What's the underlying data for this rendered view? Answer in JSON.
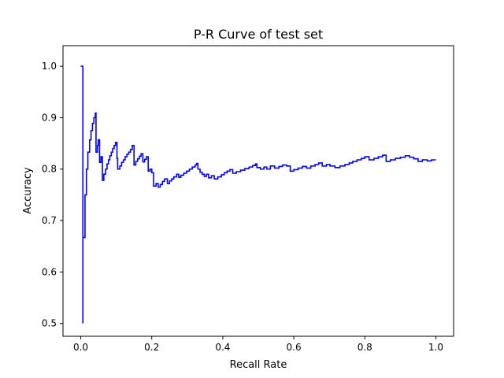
{
  "chart_data": {
    "type": "line",
    "title": "P-R Curve of test set",
    "xlabel": "Recall Rate",
    "ylabel": "Accuracy",
    "xlim": [
      -0.05,
      1.05
    ],
    "ylim": [
      0.475,
      1.04
    ],
    "xticks": [
      0.0,
      0.2,
      0.4,
      0.6,
      0.8,
      1.0
    ],
    "xtick_labels": [
      "0.0",
      "0.2",
      "0.4",
      "0.6",
      "0.8",
      "1.0"
    ],
    "yticks": [
      0.5,
      0.6,
      0.7,
      0.8,
      0.9,
      1.0
    ],
    "ytick_labels": [
      "0.5",
      "0.6",
      "0.7",
      "0.8",
      "0.9",
      "1.0"
    ],
    "grid": false,
    "series": [
      {
        "color": "#0000ff",
        "step": true,
        "points": [
          [
            0.0,
            1.0
          ],
          [
            0.006,
            0.5
          ],
          [
            0.006,
            0.667
          ],
          [
            0.012,
            0.75
          ],
          [
            0.016,
            0.8
          ],
          [
            0.02,
            0.833
          ],
          [
            0.025,
            0.857
          ],
          [
            0.029,
            0.875
          ],
          [
            0.033,
            0.889
          ],
          [
            0.037,
            0.9
          ],
          [
            0.041,
            0.909
          ],
          [
            0.043,
            0.833
          ],
          [
            0.047,
            0.846
          ],
          [
            0.049,
            0.857
          ],
          [
            0.053,
            0.813
          ],
          [
            0.057,
            0.824
          ],
          [
            0.061,
            0.778
          ],
          [
            0.065,
            0.79
          ],
          [
            0.07,
            0.8
          ],
          [
            0.074,
            0.81
          ],
          [
            0.078,
            0.818
          ],
          [
            0.082,
            0.826
          ],
          [
            0.086,
            0.833
          ],
          [
            0.09,
            0.84
          ],
          [
            0.094,
            0.846
          ],
          [
            0.098,
            0.852
          ],
          [
            0.102,
            0.821
          ],
          [
            0.104,
            0.8
          ],
          [
            0.11,
            0.806
          ],
          [
            0.115,
            0.813
          ],
          [
            0.12,
            0.818
          ],
          [
            0.125,
            0.824
          ],
          [
            0.13,
            0.829
          ],
          [
            0.135,
            0.833
          ],
          [
            0.14,
            0.838
          ],
          [
            0.145,
            0.846
          ],
          [
            0.15,
            0.808
          ],
          [
            0.155,
            0.815
          ],
          [
            0.16,
            0.82
          ],
          [
            0.165,
            0.825
          ],
          [
            0.17,
            0.83
          ],
          [
            0.175,
            0.814
          ],
          [
            0.18,
            0.819
          ],
          [
            0.185,
            0.824
          ],
          [
            0.19,
            0.796
          ],
          [
            0.195,
            0.8
          ],
          [
            0.2,
            0.793
          ],
          [
            0.205,
            0.767
          ],
          [
            0.212,
            0.772
          ],
          [
            0.218,
            0.765
          ],
          [
            0.224,
            0.77
          ],
          [
            0.23,
            0.776
          ],
          [
            0.236,
            0.781
          ],
          [
            0.244,
            0.772
          ],
          [
            0.25,
            0.777
          ],
          [
            0.256,
            0.781
          ],
          [
            0.262,
            0.785
          ],
          [
            0.27,
            0.79
          ],
          [
            0.276,
            0.784
          ],
          [
            0.282,
            0.788
          ],
          [
            0.29,
            0.792
          ],
          [
            0.298,
            0.796
          ],
          [
            0.306,
            0.8
          ],
          [
            0.314,
            0.804
          ],
          [
            0.322,
            0.808
          ],
          [
            0.326,
            0.811
          ],
          [
            0.33,
            0.8
          ],
          [
            0.336,
            0.794
          ],
          [
            0.342,
            0.79
          ],
          [
            0.348,
            0.786
          ],
          [
            0.354,
            0.79
          ],
          [
            0.36,
            0.783
          ],
          [
            0.368,
            0.787
          ],
          [
            0.376,
            0.781
          ],
          [
            0.386,
            0.785
          ],
          [
            0.396,
            0.789
          ],
          [
            0.404,
            0.793
          ],
          [
            0.412,
            0.796
          ],
          [
            0.42,
            0.799
          ],
          [
            0.428,
            0.792
          ],
          [
            0.438,
            0.795
          ],
          [
            0.45,
            0.798
          ],
          [
            0.462,
            0.801
          ],
          [
            0.474,
            0.804
          ],
          [
            0.484,
            0.807
          ],
          [
            0.492,
            0.81
          ],
          [
            0.496,
            0.803
          ],
          [
            0.506,
            0.8
          ],
          [
            0.516,
            0.804
          ],
          [
            0.524,
            0.8
          ],
          [
            0.534,
            0.806
          ],
          [
            0.546,
            0.802
          ],
          [
            0.558,
            0.805
          ],
          [
            0.568,
            0.808
          ],
          [
            0.58,
            0.806
          ],
          [
            0.59,
            0.796
          ],
          [
            0.6,
            0.799
          ],
          [
            0.612,
            0.802
          ],
          [
            0.624,
            0.805
          ],
          [
            0.636,
            0.802
          ],
          [
            0.648,
            0.806
          ],
          [
            0.66,
            0.809
          ],
          [
            0.67,
            0.812
          ],
          [
            0.68,
            0.806
          ],
          [
            0.692,
            0.809
          ],
          [
            0.702,
            0.806
          ],
          [
            0.716,
            0.803
          ],
          [
            0.73,
            0.806
          ],
          [
            0.744,
            0.809
          ],
          [
            0.756,
            0.812
          ],
          [
            0.766,
            0.815
          ],
          [
            0.778,
            0.818
          ],
          [
            0.79,
            0.821
          ],
          [
            0.8,
            0.824
          ],
          [
            0.812,
            0.818
          ],
          [
            0.826,
            0.821
          ],
          [
            0.838,
            0.824
          ],
          [
            0.85,
            0.827
          ],
          [
            0.86,
            0.815
          ],
          [
            0.872,
            0.818
          ],
          [
            0.886,
            0.821
          ],
          [
            0.9,
            0.823
          ],
          [
            0.914,
            0.826
          ],
          [
            0.926,
            0.823
          ],
          [
            0.938,
            0.82
          ],
          [
            0.95,
            0.815
          ],
          [
            0.962,
            0.818
          ],
          [
            0.976,
            0.816
          ],
          [
            0.988,
            0.818
          ],
          [
            1.0,
            0.818
          ]
        ]
      }
    ]
  }
}
